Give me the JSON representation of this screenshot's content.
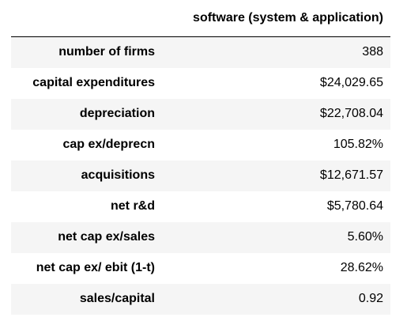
{
  "table": {
    "column_header": "software (system & application)",
    "rows": [
      {
        "label": "number of firms",
        "value": "388"
      },
      {
        "label": "capital expenditures",
        "value": "$24,029.65"
      },
      {
        "label": "depreciation",
        "value": "$22,708.04"
      },
      {
        "label": "cap ex/deprecn",
        "value": "105.82%"
      },
      {
        "label": "acquisitions",
        "value": "$12,671.57"
      },
      {
        "label": "net r&d",
        "value": "$5,780.64"
      },
      {
        "label": "net cap ex/sales",
        "value": "5.60%"
      },
      {
        "label": "net cap ex/ ebit (1-t)",
        "value": "28.62%"
      },
      {
        "label": "sales/capital",
        "value": "0.92"
      }
    ]
  },
  "colors": {
    "stripe": "#f5f5f5",
    "background": "#ffffff",
    "text": "#000000",
    "header_rule": "#000000"
  }
}
